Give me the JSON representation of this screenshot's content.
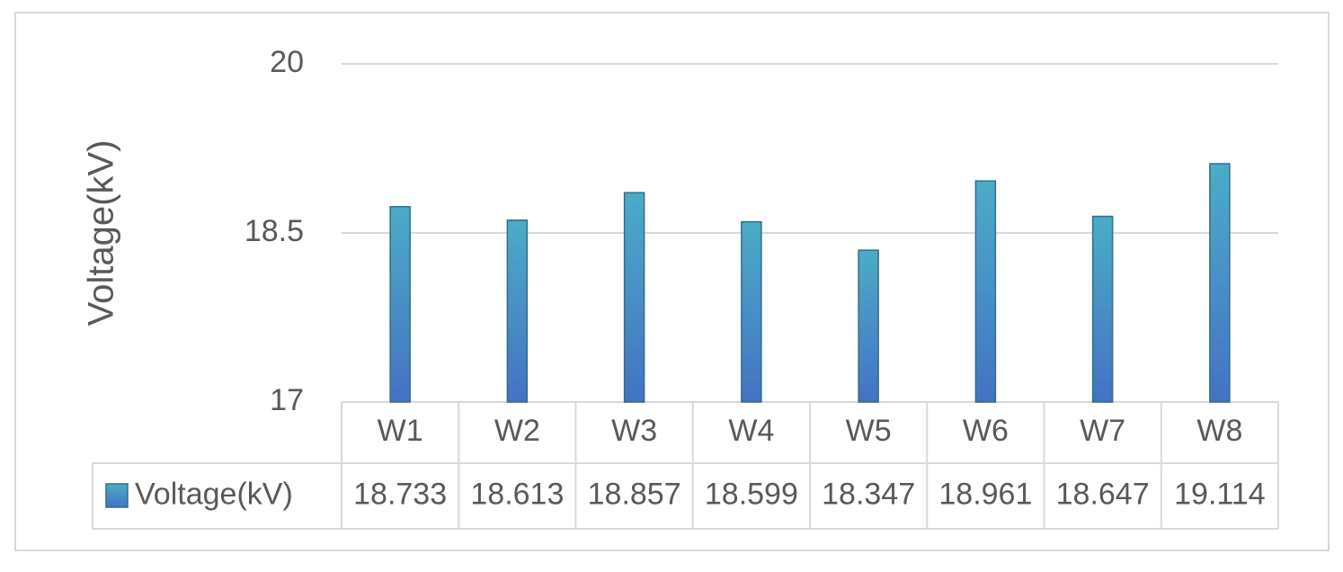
{
  "chart_data": {
    "type": "bar",
    "y_label": "Voltage(kV)",
    "categories": [
      "W1",
      "W2",
      "W3",
      "W4",
      "W5",
      "W6",
      "W7",
      "W8"
    ],
    "series": [
      {
        "name": "Voltage(kV)",
        "color": "#4472c4",
        "gradient_top": "#4bacc6",
        "values": [
          18.733,
          18.613,
          18.857,
          18.599,
          18.347,
          18.961,
          18.647,
          19.114
        ]
      }
    ],
    "ylim": [
      17,
      20
    ],
    "yticks": [
      17,
      18.5,
      20
    ],
    "grid": true,
    "data_table": true
  }
}
